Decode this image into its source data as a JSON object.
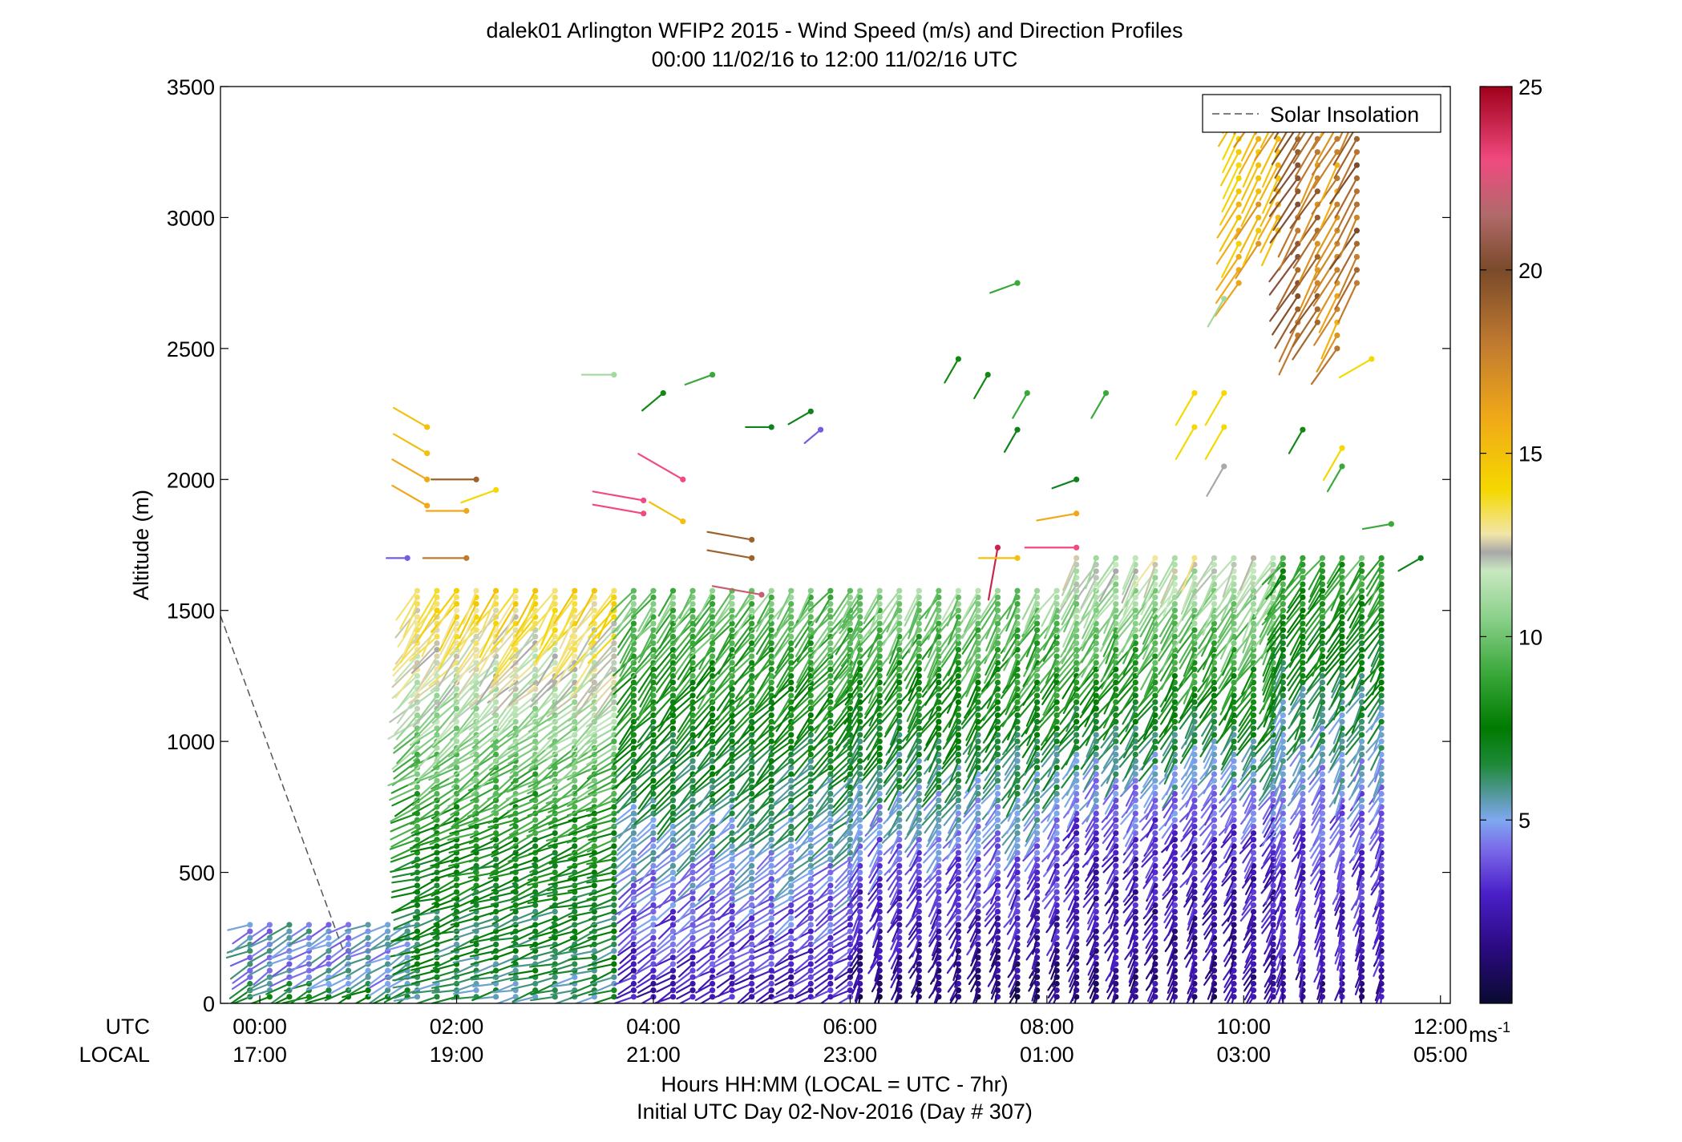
{
  "chart_data": {
    "type": "wind barb profile (scatter)",
    "title": "dalek01 Arlington WFIP2 2015 - Wind Speed (m/s) and Direction Profiles",
    "subtitle": "00:00 11/02/16 to 12:00 11/02/16  UTC",
    "ylabel": "Altitude (m)",
    "xlabel": "Hours HH:MM  (LOCAL = UTC - 7hr)",
    "xlabel2": "Initial UTC Day 02-Nov-2016 (Day # 307)",
    "row_label_utc": "UTC",
    "row_label_local": "LOCAL",
    "xlim_hours": [
      -0.4,
      12.1
    ],
    "ylim": [
      0,
      3500
    ],
    "y_ticks": [
      0,
      500,
      1000,
      1500,
      2000,
      2500,
      3000,
      3500
    ],
    "x_ticks": [
      {
        "hour": 0,
        "utc": "00:00",
        "local": "17:00"
      },
      {
        "hour": 2,
        "utc": "02:00",
        "local": "19:00"
      },
      {
        "hour": 4,
        "utc": "04:00",
        "local": "21:00"
      },
      {
        "hour": 6,
        "utc": "06:00",
        "local": "23:00"
      },
      {
        "hour": 8,
        "utc": "08:00",
        "local": "01:00"
      },
      {
        "hour": 10,
        "utc": "10:00",
        "local": "03:00"
      },
      {
        "hour": 12,
        "utc": "12:00",
        "local": "05:00"
      }
    ],
    "legend": {
      "label": "Solar Insolation",
      "placement": "top-right",
      "style": "dashed gray"
    },
    "solar_insolation": {
      "x": [
        -0.4,
        0.85
      ],
      "y": [
        1480,
        200
      ]
    },
    "colorbar": {
      "range": [
        0,
        25
      ],
      "ticks": [
        5,
        10,
        15,
        20,
        25
      ],
      "unit": "ms",
      "unit_exp": "-1",
      "stops": [
        {
          "v": 0,
          "c": "#0a0a30"
        },
        {
          "v": 1.5,
          "c": "#2a0a80"
        },
        {
          "v": 3,
          "c": "#4a1fc8"
        },
        {
          "v": 4.2,
          "c": "#7a6ae8"
        },
        {
          "v": 5,
          "c": "#7fa8f0"
        },
        {
          "v": 5.6,
          "c": "#5a9aa8"
        },
        {
          "v": 6.5,
          "c": "#1f8a3a"
        },
        {
          "v": 7.5,
          "c": "#007a00"
        },
        {
          "v": 9,
          "c": "#3aa83a"
        },
        {
          "v": 10.5,
          "c": "#8ad08a"
        },
        {
          "v": 11.8,
          "c": "#c8e8c0"
        },
        {
          "v": 12.3,
          "c": "#a8a8a8"
        },
        {
          "v": 12.8,
          "c": "#f2e6a8"
        },
        {
          "v": 14,
          "c": "#f5d800"
        },
        {
          "v": 16,
          "c": "#f0a818"
        },
        {
          "v": 18,
          "c": "#c07a30"
        },
        {
          "v": 20,
          "c": "#7a4a2a"
        },
        {
          "v": 21.5,
          "c": "#b06a6a"
        },
        {
          "v": 23,
          "c": "#f04a80"
        },
        {
          "v": 25,
          "c": "#a0001a"
        }
      ]
    },
    "profile_segments": [
      {
        "t_start": -0.1,
        "t_end": 1.6,
        "dt": 0.2,
        "z_max": 300,
        "dz": 25,
        "low": {
          "spd": 8,
          "dir": 250
        },
        "mid": {
          "spd": 5,
          "dir": 240
        },
        "up": {
          "spd": 5,
          "dir": 245
        }
      },
      {
        "t_start": 1.6,
        "t_end": 3.8,
        "dt": 0.2,
        "z_max": 1580,
        "dz": 25,
        "low": {
          "spd": 6,
          "dir": 255
        },
        "mid": {
          "spd": 7.5,
          "dir": 250
        },
        "up": {
          "spd": 14,
          "dir": 210
        }
      },
      {
        "t_start": 3.8,
        "t_end": 6.1,
        "dt": 0.2,
        "z_max": 1580,
        "dz": 25,
        "low": {
          "spd": 2.5,
          "dir": 240
        },
        "mid": {
          "spd": 5,
          "dir": 230
        },
        "up": {
          "spd": 10,
          "dir": 215
        }
      },
      {
        "t_start": 6.1,
        "t_end": 8.3,
        "dt": 0.2,
        "z_max": 1580,
        "dz": 25,
        "low": {
          "spd": 1,
          "dir": 200
        },
        "mid": {
          "spd": 4,
          "dir": 215
        },
        "up": {
          "spd": 10.5,
          "dir": 210
        }
      },
      {
        "t_start": 8.3,
        "t_end": 10.4,
        "dt": 0.2,
        "z_max": 1700,
        "dz": 25,
        "low": {
          "spd": 1.5,
          "dir": 200
        },
        "mid": {
          "spd": 3,
          "dir": 215
        },
        "up": {
          "spd": 12,
          "dir": 210
        }
      },
      {
        "t_start": 10.4,
        "t_end": 11.6,
        "dt": 0.2,
        "z_max": 1700,
        "dz": 25,
        "low": {
          "spd": 2,
          "dir": 190
        },
        "mid": {
          "spd": 3.5,
          "dir": 205
        },
        "up": {
          "spd": 9,
          "dir": 215
        }
      }
    ],
    "upper_barbs": [
      {
        "t": 1.7,
        "z": 2200,
        "spd": 15,
        "dir": 300
      },
      {
        "t": 1.7,
        "z": 2100,
        "spd": 15,
        "dir": 300
      },
      {
        "t": 1.7,
        "z": 2000,
        "spd": 16,
        "dir": 300
      },
      {
        "t": 1.7,
        "z": 1900,
        "spd": 16,
        "dir": 300
      },
      {
        "t": 2.1,
        "z": 1880,
        "spd": 16,
        "dir": 270
      },
      {
        "t": 2.4,
        "z": 1960,
        "spd": 14,
        "dir": 250
      },
      {
        "t": 2.2,
        "z": 2000,
        "spd": 19,
        "dir": 270
      },
      {
        "t": 1.5,
        "z": 1700,
        "spd": 4,
        "dir": 270
      },
      {
        "t": 2.1,
        "z": 1700,
        "spd": 18,
        "dir": 270
      },
      {
        "t": 3.9,
        "z": 1920,
        "spd": 23,
        "dir": 280
      },
      {
        "t": 3.9,
        "z": 1870,
        "spd": 23,
        "dir": 280
      },
      {
        "t": 4.3,
        "z": 2000,
        "spd": 23,
        "dir": 300
      },
      {
        "t": 4.3,
        "z": 1840,
        "spd": 15,
        "dir": 300
      },
      {
        "t": 3.6,
        "z": 2400,
        "spd": 11,
        "dir": 270
      },
      {
        "t": 4.6,
        "z": 2400,
        "spd": 9,
        "dir": 250
      },
      {
        "t": 4.1,
        "z": 2330,
        "spd": 8,
        "dir": 230
      },
      {
        "t": 5.2,
        "z": 2200,
        "spd": 7,
        "dir": 270
      },
      {
        "t": 5.6,
        "z": 2260,
        "spd": 7,
        "dir": 240
      },
      {
        "t": 5.7,
        "z": 2190,
        "spd": 4,
        "dir": 230
      },
      {
        "t": 5.0,
        "z": 1770,
        "spd": 19,
        "dir": 280
      },
      {
        "t": 5.0,
        "z": 1700,
        "spd": 19,
        "dir": 280
      },
      {
        "t": 5.1,
        "z": 1560,
        "spd": 22,
        "dir": 280
      },
      {
        "t": 7.1,
        "z": 2460,
        "spd": 8,
        "dir": 210
      },
      {
        "t": 7.4,
        "z": 2400,
        "spd": 8,
        "dir": 210
      },
      {
        "t": 7.8,
        "z": 2330,
        "spd": 9,
        "dir": 210
      },
      {
        "t": 7.7,
        "z": 2190,
        "spd": 7,
        "dir": 210
      },
      {
        "t": 7.7,
        "z": 2750,
        "spd": 9,
        "dir": 250
      },
      {
        "t": 8.3,
        "z": 2000,
        "spd": 7,
        "dir": 250
      },
      {
        "t": 8.6,
        "z": 2330,
        "spd": 9,
        "dir": 210
      },
      {
        "t": 7.5,
        "z": 1740,
        "spd": 24,
        "dir": 190
      },
      {
        "t": 7.7,
        "z": 1700,
        "spd": 15,
        "dir": 270
      },
      {
        "t": 8.3,
        "z": 1870,
        "spd": 16,
        "dir": 260
      },
      {
        "t": 8.3,
        "z": 1740,
        "spd": 23,
        "dir": 270
      },
      {
        "t": 9.5,
        "z": 2330,
        "spd": 14,
        "dir": 210
      },
      {
        "t": 9.8,
        "z": 2330,
        "spd": 14,
        "dir": 210
      },
      {
        "t": 9.5,
        "z": 2200,
        "spd": 14,
        "dir": 210
      },
      {
        "t": 9.8,
        "z": 2200,
        "spd": 14,
        "dir": 210
      },
      {
        "t": 9.8,
        "z": 2050,
        "spd": 12.3,
        "dir": 210
      },
      {
        "t": 10.6,
        "z": 2190,
        "spd": 8,
        "dir": 210
      },
      {
        "t": 11.0,
        "z": 2120,
        "spd": 14,
        "dir": 210
      },
      {
        "t": 11.0,
        "z": 2050,
        "spd": 9,
        "dir": 210
      },
      {
        "t": 11.3,
        "z": 2460,
        "spd": 14,
        "dir": 240
      },
      {
        "t": 9.8,
        "z": 2690,
        "spd": 11,
        "dir": 210
      },
      {
        "t": 11.5,
        "z": 1830,
        "spd": 9,
        "dir": 260
      },
      {
        "t": 11.8,
        "z": 1700,
        "spd": 7,
        "dir": 240
      }
    ],
    "upper_columns": [
      {
        "t": 9.95,
        "z_min": 2750,
        "z_max": 3480,
        "spd": 15,
        "dir": 210
      },
      {
        "t": 10.15,
        "z_min": 2900,
        "z_max": 3480,
        "spd": 16,
        "dir": 210
      },
      {
        "t": 10.35,
        "z_min": 2950,
        "z_max": 3480,
        "spd": 16,
        "dir": 210
      },
      {
        "t": 10.55,
        "z_min": 2550,
        "z_max": 3480,
        "spd": 19,
        "dir": 210
      },
      {
        "t": 10.75,
        "z_min": 2600,
        "z_max": 3480,
        "spd": 18,
        "dir": 210
      },
      {
        "t": 10.95,
        "z_min": 2500,
        "z_max": 3480,
        "spd": 17,
        "dir": 210
      },
      {
        "t": 11.15,
        "z_min": 2750,
        "z_max": 3480,
        "spd": 19,
        "dir": 210
      }
    ]
  }
}
